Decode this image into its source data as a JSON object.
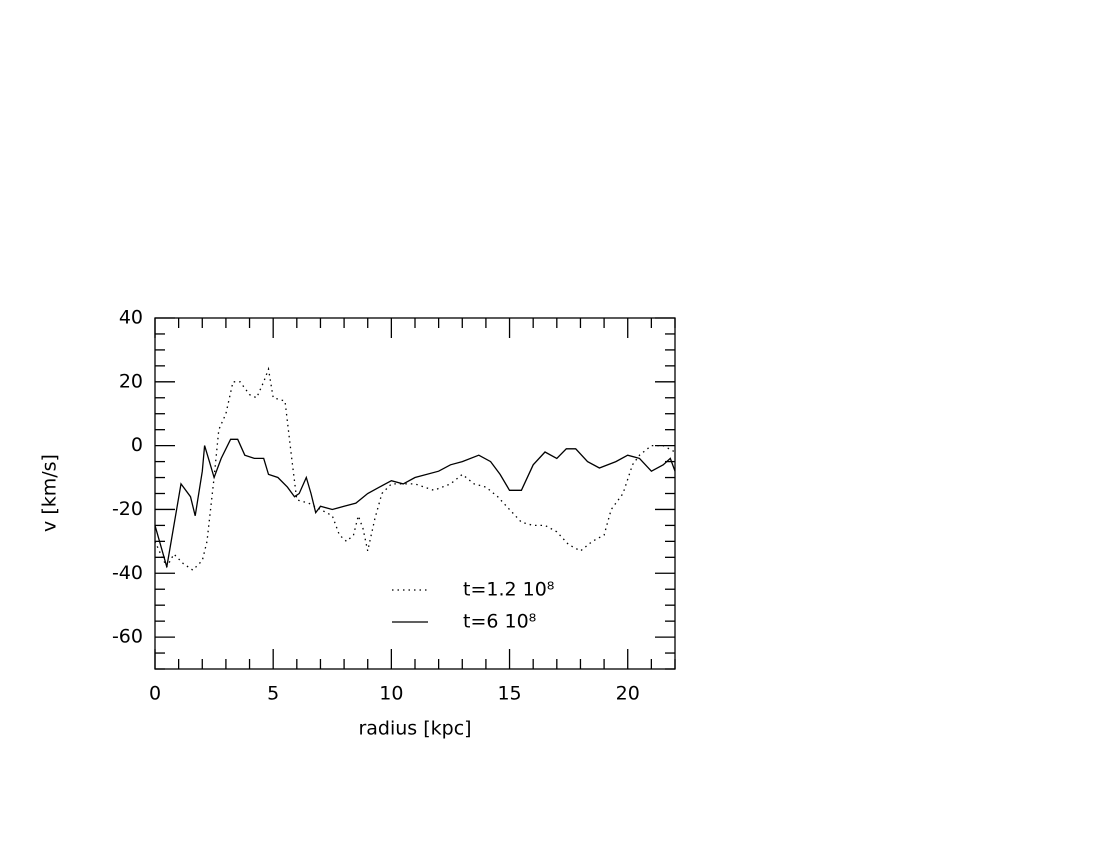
{
  "chart_data": {
    "type": "line",
    "x_label": "radius [kpc]",
    "y_label": "v [km/s]",
    "xlim": [
      0,
      22
    ],
    "ylim": [
      -70,
      40
    ],
    "xticks": [
      0,
      5,
      10,
      15,
      20
    ],
    "yticks": [
      -60,
      -40,
      -20,
      0,
      20,
      40
    ],
    "xminorticks": [
      1,
      2,
      3,
      4,
      6,
      7,
      8,
      9,
      11,
      12,
      13,
      14,
      16,
      17,
      18,
      19,
      21,
      22
    ],
    "yminorticks": [
      -70,
      -65,
      -55,
      -50,
      -45,
      -35,
      -30,
      -25,
      -15,
      -10,
      -5,
      5,
      10,
      15,
      25,
      30,
      35
    ],
    "grid": false,
    "series": [
      {
        "name": "t=1.2  10⁸",
        "color": "#000000",
        "dash": "dotted",
        "x": [
          0,
          0.3,
          0.5,
          0.8,
          1.2,
          1.6,
          2.0,
          2.2,
          2.5,
          2.7,
          3.0,
          3.3,
          3.6,
          4.0,
          4.3,
          4.6,
          4.8,
          5.0,
          5.5,
          5.8,
          6.0,
          6.5,
          7.0,
          7.5,
          7.8,
          8.1,
          8.4,
          8.6,
          8.8,
          9.0,
          9.3,
          9.6,
          10,
          11,
          11.8,
          12.5,
          13,
          13.5,
          14,
          14.5,
          15,
          15.5,
          16,
          16.5,
          17,
          17.5,
          18,
          18.5,
          19,
          19.3,
          19.8,
          20.2,
          20.5,
          21,
          21.5,
          22
        ],
        "values": [
          -30,
          -35,
          -38,
          -34,
          -37,
          -39,
          -36,
          -30,
          -10,
          5,
          10,
          20,
          20,
          16,
          15,
          20,
          24,
          15,
          14,
          -5,
          -17,
          -18,
          -20,
          -22,
          -28,
          -30,
          -28,
          -22,
          -26,
          -33,
          -23,
          -15,
          -12,
          -12,
          -14,
          -12,
          -9,
          -12,
          -13,
          -16,
          -20,
          -24,
          -25,
          -25,
          -27,
          -31,
          -33,
          -30,
          -28,
          -20,
          -15,
          -6,
          -3,
          0,
          0,
          -2
        ]
      },
      {
        "name": "t=6  10⁸",
        "color": "#000000",
        "dash": "solid",
        "x": [
          0,
          0.5,
          0.8,
          1.1,
          1.5,
          1.7,
          2.0,
          2.1,
          2.3,
          2.5,
          2.8,
          3.2,
          3.5,
          3.8,
          4.2,
          4.6,
          4.8,
          5.2,
          5.6,
          5.9,
          6.1,
          6.4,
          6.6,
          6.8,
          7.0,
          7.5,
          8,
          8.5,
          9,
          9.5,
          10,
          10.5,
          11,
          12,
          12.5,
          13,
          13.7,
          14.2,
          14.6,
          15,
          15.5,
          16,
          16.5,
          17,
          17.4,
          17.8,
          18.3,
          18.8,
          19.5,
          20,
          20.5,
          21,
          21.5,
          21.8,
          22
        ],
        "values": [
          -25,
          -38,
          -25,
          -12,
          -16,
          -22,
          -8,
          0,
          -5,
          -10,
          -4,
          2,
          2,
          -3,
          -4,
          -4,
          -9,
          -10,
          -13,
          -16,
          -15,
          -10,
          -15,
          -21,
          -19,
          -20,
          -19,
          -18,
          -15,
          -13,
          -11,
          -12,
          -10,
          -8,
          -6,
          -5,
          -3,
          -5,
          -9,
          -14,
          -14,
          -6,
          -2,
          -4,
          -1,
          -1,
          -5,
          -7,
          -5,
          -3,
          -4,
          -8,
          -6,
          -4,
          -8
        ]
      }
    ],
    "legend": "lower-center"
  }
}
